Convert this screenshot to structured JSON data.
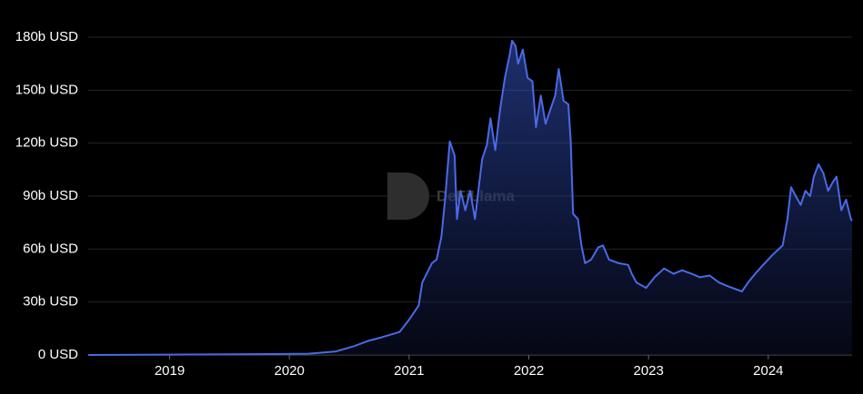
{
  "chart_data": {
    "type": "area",
    "watermark": "DeFiLlama",
    "color": "#4a6ae6",
    "grid": true,
    "x": [
      2018.32,
      2019.0,
      2019.86,
      2020.16,
      2020.39,
      2020.54,
      2020.66,
      2020.77,
      2020.92,
      2021.0,
      2021.08,
      2021.11,
      2021.19,
      2021.23,
      2021.27,
      2021.3,
      2021.34,
      2021.38,
      2021.4,
      2021.43,
      2021.47,
      2021.51,
      2021.55,
      2021.61,
      2021.65,
      2021.68,
      2021.72,
      2021.76,
      2021.8,
      2021.84,
      2021.86,
      2021.89,
      2021.91,
      2021.95,
      2021.99,
      2022.03,
      2022.06,
      2022.1,
      2022.14,
      2022.18,
      2022.22,
      2022.25,
      2022.29,
      2022.33,
      2022.35,
      2022.37,
      2022.41,
      2022.44,
      2022.47,
      2022.52,
      2022.58,
      2022.62,
      2022.67,
      2022.75,
      2022.83,
      2022.86,
      2022.9,
      2022.98,
      2023.05,
      2023.13,
      2023.21,
      2023.28,
      2023.36,
      2023.43,
      2023.51,
      2023.59,
      2023.66,
      2023.78,
      2023.83,
      2023.89,
      2023.97,
      2024.04,
      2024.12,
      2024.16,
      2024.19,
      2024.23,
      2024.27,
      2024.31,
      2024.35,
      2024.38,
      2024.42,
      2024.46,
      2024.5,
      2024.54,
      2024.57,
      2024.61,
      2024.65,
      2024.69,
      2024.7
    ],
    "values": [
      0,
      0.2,
      0.5,
      0.7,
      2,
      5,
      8,
      10,
      13,
      20,
      28,
      41,
      52,
      54,
      67,
      88,
      121,
      113,
      77,
      93,
      82,
      93,
      77,
      111,
      119,
      134,
      116,
      139,
      157,
      170,
      178,
      175,
      165,
      173,
      157,
      155,
      129,
      147,
      131,
      139,
      147,
      162,
      144,
      142,
      121,
      80,
      77,
      62,
      52,
      54,
      61,
      62,
      54,
      52,
      51,
      46,
      41,
      38,
      44,
      49,
      46,
      48,
      46,
      44,
      45,
      41,
      39,
      36,
      41,
      46,
      52,
      57,
      62,
      77,
      95,
      90,
      85,
      93,
      90,
      101,
      108,
      103,
      93,
      98,
      101,
      82,
      88,
      77,
      76
    ],
    "xlim": [
      2018.32,
      2024.7
    ],
    "xticks": [
      2019,
      2020,
      2021,
      2022,
      2023,
      2024
    ],
    "ylim": [
      0,
      180
    ],
    "yticks": [
      {
        "value": 0,
        "label": "0 USD"
      },
      {
        "value": 30,
        "label": "30b USD"
      },
      {
        "value": 60,
        "label": "60b USD"
      },
      {
        "value": 90,
        "label": "90b USD"
      },
      {
        "value": 120,
        "label": "120b USD"
      },
      {
        "value": 150,
        "label": "150b USD"
      },
      {
        "value": 180,
        "label": "180b USD"
      }
    ]
  }
}
